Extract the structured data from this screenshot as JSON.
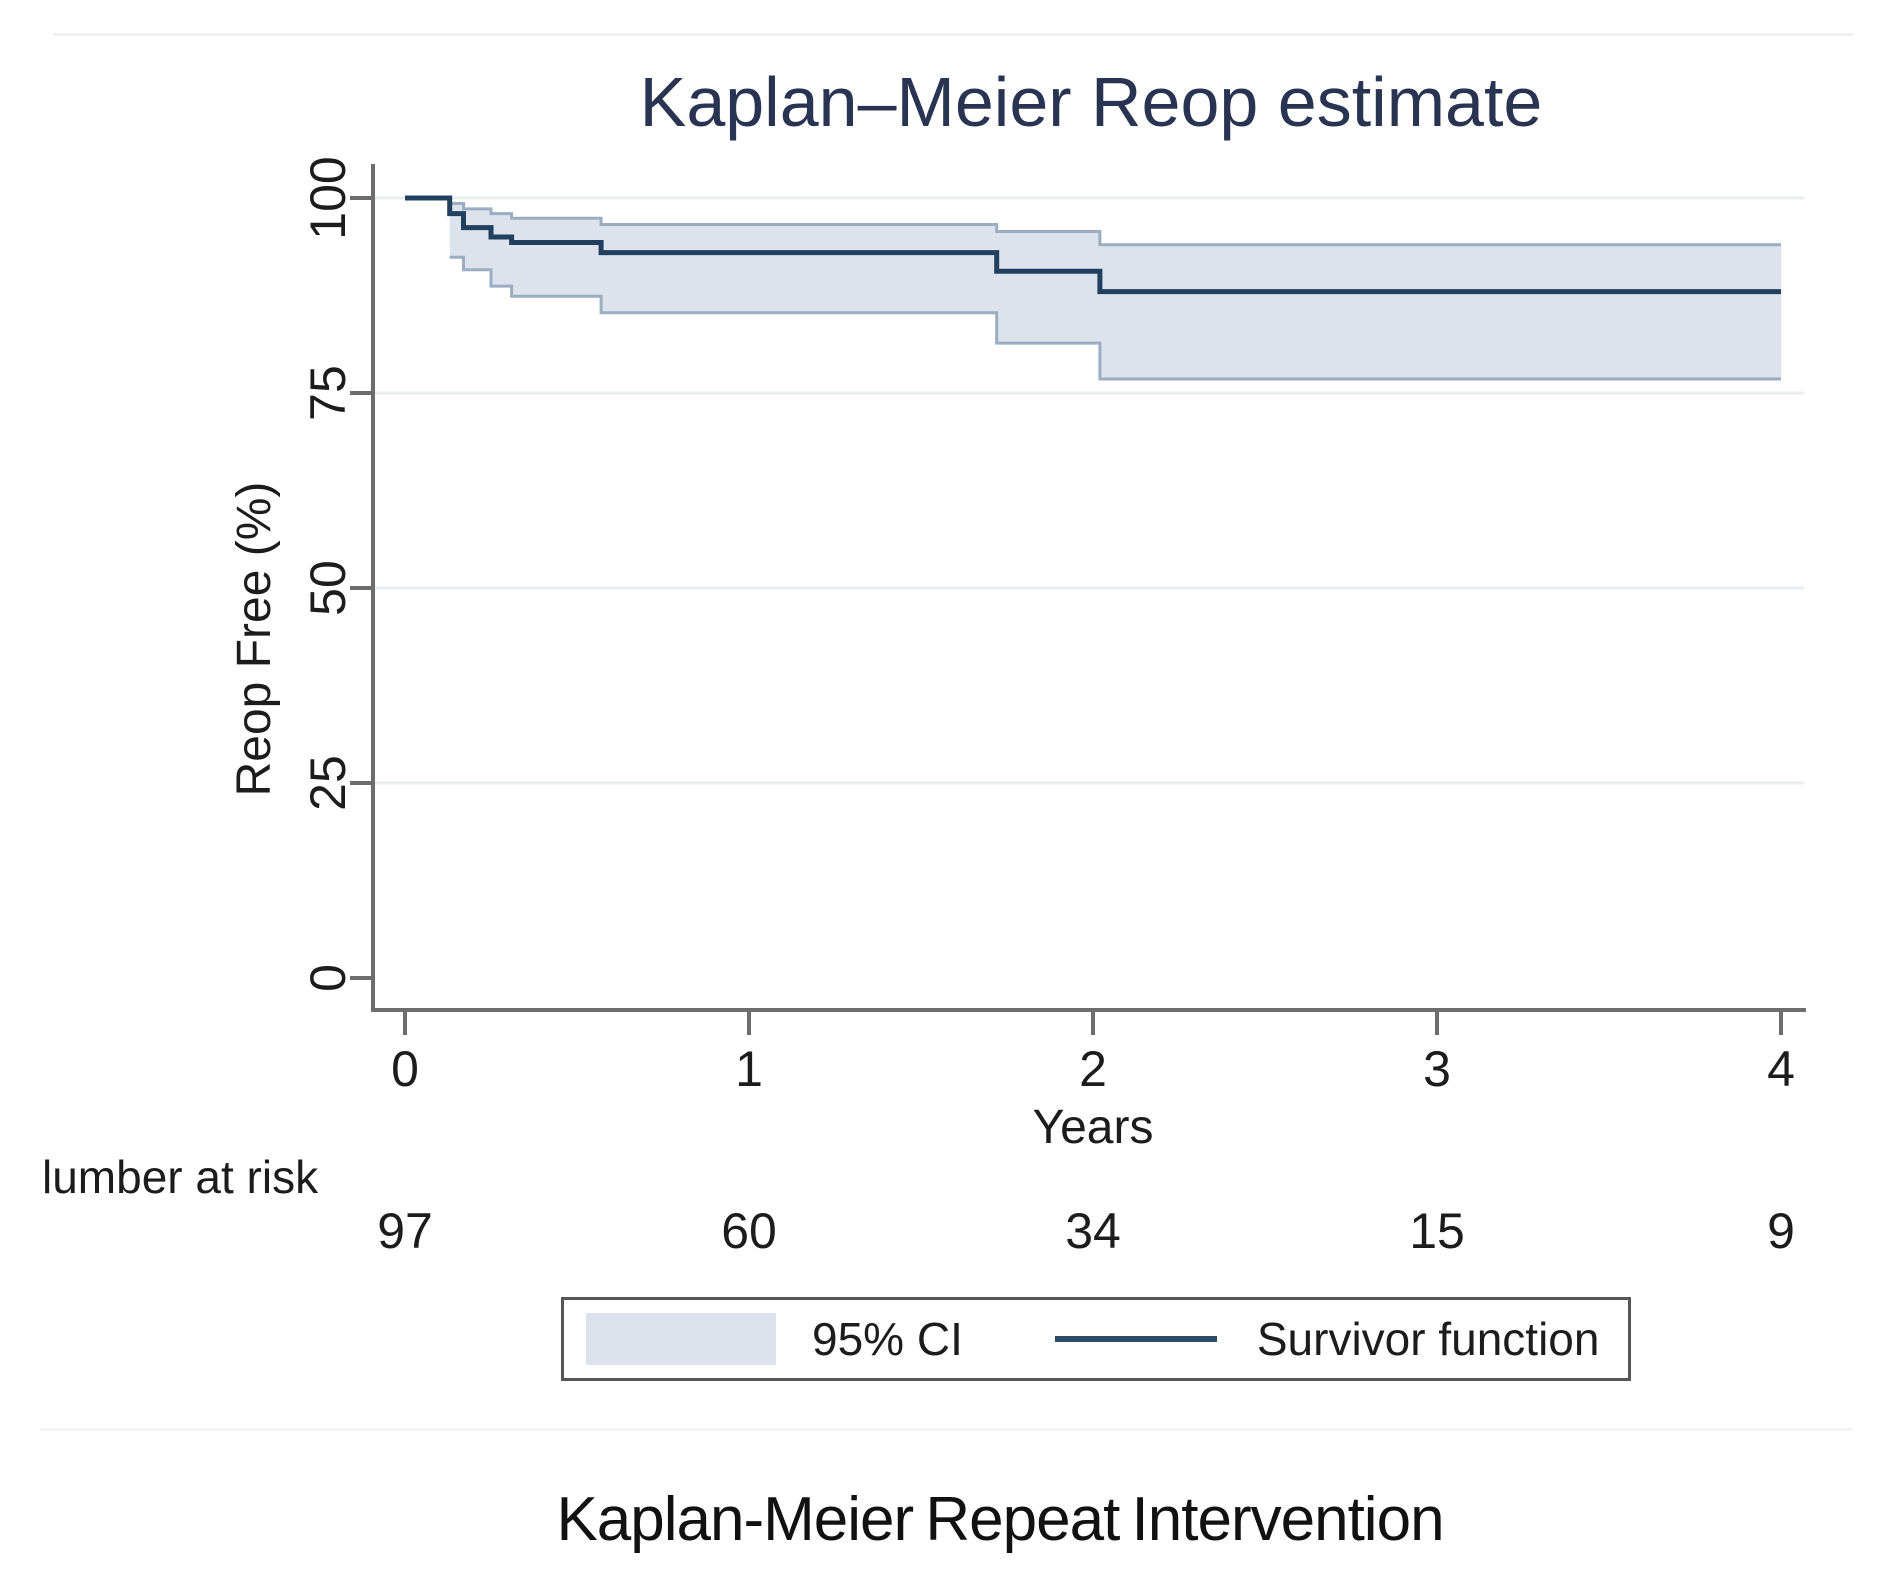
{
  "figure": {
    "title": "Kaplan–Meier Reop estimate",
    "caption": "Kaplan-Meier Repeat Intervention",
    "legend": {
      "ci_label": "95% CI",
      "survivor_label": "Survivor function"
    }
  },
  "chart_data": {
    "type": "line",
    "subtype": "kaplan-meier-step-with-confidence-band",
    "title": "Kaplan–Meier Reop estimate",
    "xlabel": "Years",
    "ylabel": "Reop Free (%)",
    "xlim": [
      0,
      4
    ],
    "ylim": [
      0,
      100
    ],
    "x_ticks": [
      0,
      1,
      2,
      3,
      4
    ],
    "y_ticks": [
      0,
      25,
      50,
      75,
      100
    ],
    "x_tick_labels": [
      "0",
      "1",
      "2",
      "3",
      "4"
    ],
    "y_tick_labels": [
      "100",
      "75",
      "50",
      "25",
      "0"
    ],
    "gridline_values": [
      100,
      75,
      50,
      25
    ],
    "grid": "horizontal",
    "legend_position": "bottom",
    "series": [
      {
        "name": "Survivor function",
        "steps": [
          [
            0,
            100
          ],
          [
            0.13,
            98.0
          ],
          [
            0.17,
            96.2
          ],
          [
            0.25,
            95.0
          ],
          [
            0.31,
            94.3
          ],
          [
            0.57,
            93.0
          ],
          [
            1.72,
            90.6
          ],
          [
            2.02,
            88.0
          ]
        ],
        "end_x": 4.0
      },
      {
        "name": "95% CI upper",
        "steps": [
          [
            0.13,
            99.3
          ],
          [
            0.17,
            98.6
          ],
          [
            0.25,
            98.0
          ],
          [
            0.31,
            97.4
          ],
          [
            0.57,
            96.6
          ],
          [
            1.72,
            95.7
          ],
          [
            2.02,
            94.0
          ]
        ],
        "end_x": 4.0
      },
      {
        "name": "95% CI lower",
        "steps": [
          [
            0.13,
            92.4
          ],
          [
            0.17,
            90.8
          ],
          [
            0.25,
            88.7
          ],
          [
            0.31,
            87.4
          ],
          [
            0.57,
            85.3
          ],
          [
            1.72,
            81.4
          ],
          [
            2.02,
            76.8
          ]
        ],
        "end_x": 4.0
      }
    ],
    "number_at_risk": {
      "label": "lumber at risk",
      "times": [
        0,
        1,
        2,
        3,
        4
      ],
      "counts": [
        97,
        60,
        34,
        15,
        9
      ]
    },
    "colors": {
      "survivor": "#21405f",
      "ci_fill": "#dce3ed",
      "ci_edge": "#9badc0",
      "axis": "#6d6d6d",
      "grid": "#e9edf2",
      "title": "#293452"
    }
  }
}
